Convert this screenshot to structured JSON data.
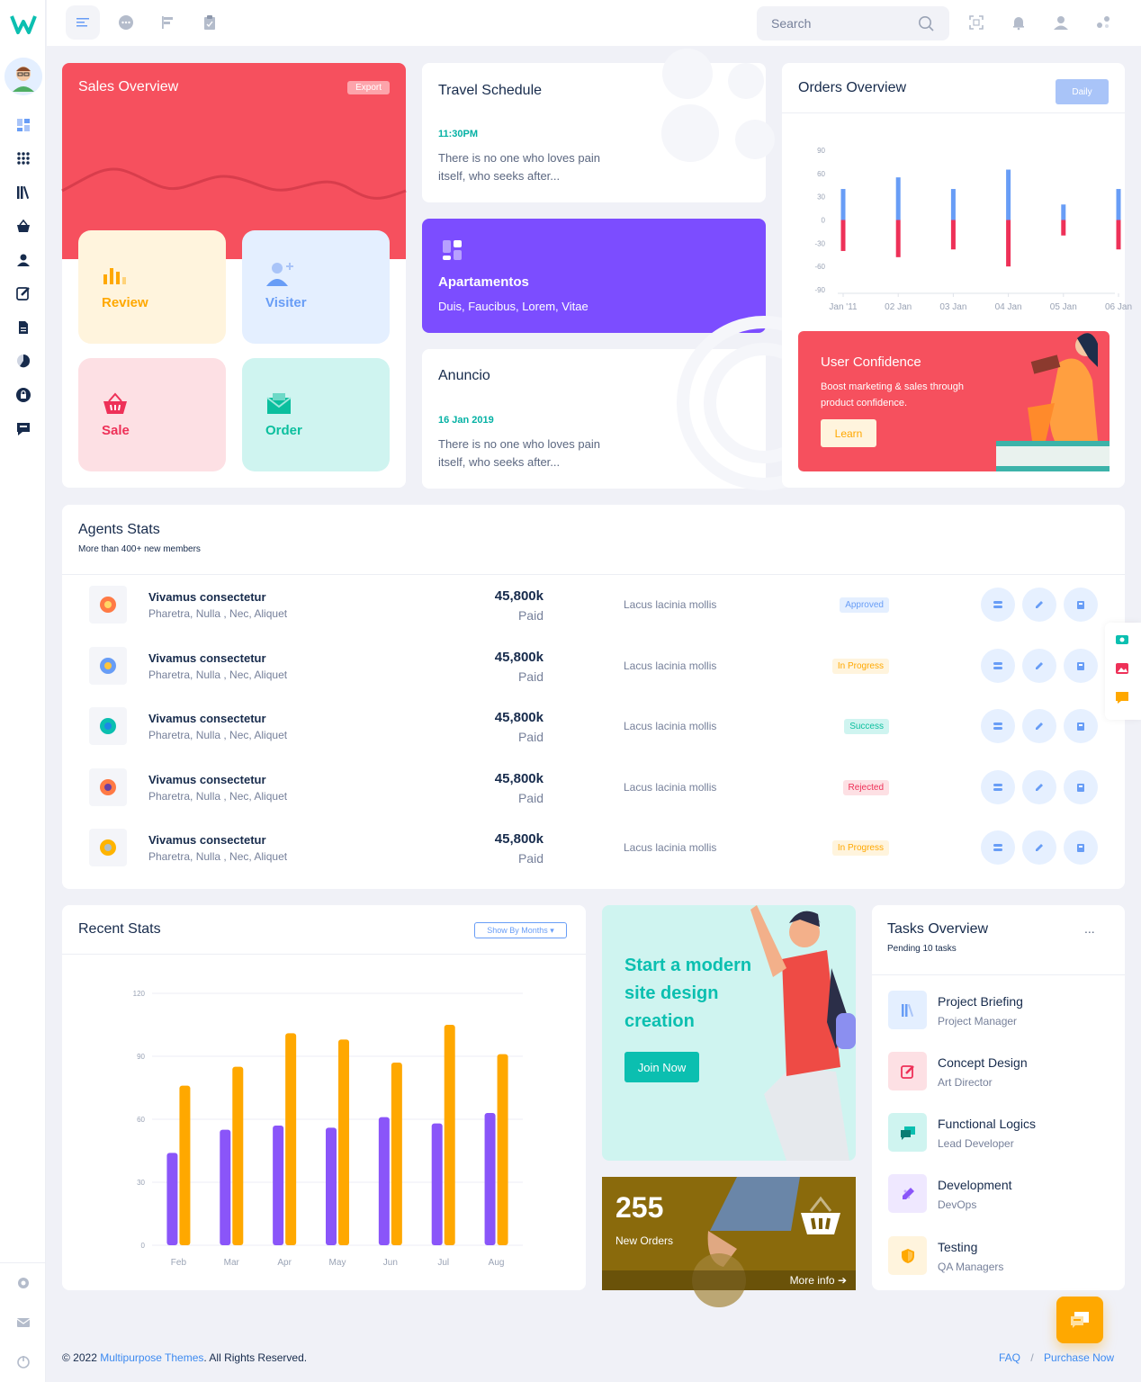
{
  "header": {
    "search_placeholder": "Search"
  },
  "sales": {
    "title": "Sales Overview",
    "export": "Export",
    "tiles": [
      {
        "label": "Review",
        "color": "#ffa800"
      },
      {
        "label": "Visiter",
        "color": "#689df6"
      },
      {
        "label": "Sale",
        "color": "#ee3158"
      },
      {
        "label": "Order",
        "color": "#0bbf9e"
      }
    ]
  },
  "travel": {
    "title": "Travel Schedule",
    "time": "11:30PM",
    "text": "There is no one who loves pain itself, who seeks after..."
  },
  "apartments": {
    "title": "Apartamentos",
    "subtitle": "Duis, Faucibus, Lorem, Vitae"
  },
  "anuncio": {
    "title": "Anuncio",
    "date": "16 Jan 2019",
    "text": "There is no one who loves pain itself, who seeks after..."
  },
  "orders": {
    "title": "Orders Overview",
    "daily": "Daily"
  },
  "confidence": {
    "title": "User Confidence",
    "text": "Boost marketing & sales through product confidence.",
    "button": "Learn"
  },
  "agents": {
    "title": "Agents Stats",
    "subtitle": "More than 400+ new members",
    "rows": [
      {
        "name": "Vivamus consectetur",
        "sub": "Pharetra, Nulla , Nec, Aliquet",
        "amount": "45,800k",
        "paid": "Paid",
        "desc": "Lacus lacinia mollis",
        "status": "Approved"
      },
      {
        "name": "Vivamus consectetur",
        "sub": "Pharetra, Nulla , Nec, Aliquet",
        "amount": "45,800k",
        "paid": "Paid",
        "desc": "Lacus lacinia mollis",
        "status": "In Progress"
      },
      {
        "name": "Vivamus consectetur",
        "sub": "Pharetra, Nulla , Nec, Aliquet",
        "amount": "45,800k",
        "paid": "Paid",
        "desc": "Lacus lacinia mollis",
        "status": "Success"
      },
      {
        "name": "Vivamus consectetur",
        "sub": "Pharetra, Nulla , Nec, Aliquet",
        "amount": "45,800k",
        "paid": "Paid",
        "desc": "Lacus lacinia mollis",
        "status": "Rejected"
      },
      {
        "name": "Vivamus consectetur",
        "sub": "Pharetra, Nulla , Nec, Aliquet",
        "amount": "45,800k",
        "paid": "Paid",
        "desc": "Lacus lacinia mollis",
        "status": "In Progress"
      }
    ]
  },
  "recent": {
    "title": "Recent Stats",
    "filter": "Show By Months"
  },
  "promo": {
    "title": "Start a modern site design creation",
    "button": "Join Now"
  },
  "neworders": {
    "count": "255",
    "label": "New Orders",
    "more": "More info"
  },
  "tasks": {
    "title": "Tasks Overview",
    "subtitle": "Pending 10 tasks",
    "more": "...",
    "items": [
      {
        "name": "Project Briefing",
        "role": "Project Manager"
      },
      {
        "name": "Concept Design",
        "role": "Art Director"
      },
      {
        "name": "Functional Logics",
        "role": "Lead Developer"
      },
      {
        "name": "Development",
        "role": "DevOps"
      },
      {
        "name": "Testing",
        "role": "QA Managers"
      }
    ]
  },
  "footer": {
    "copyright_prefix": "© 2022 ",
    "company": "Multipurpose Themes",
    "copyright_suffix": ". All Rights Reserved.",
    "faq": "FAQ",
    "sep": "/",
    "purchase": "Purchase Now"
  },
  "chart_data": [
    {
      "type": "bar",
      "categories": [
        "Jan '11",
        "02 Jan",
        "03 Jan",
        "04 Jan",
        "05 Jan",
        "06 Jan"
      ],
      "series": [
        {
          "name": "",
          "values": [
            40,
            55,
            40,
            65,
            20,
            40
          ],
          "color": "#689df6"
        },
        {
          "name": "",
          "values": [
            -40,
            -48,
            -38,
            -60,
            -20,
            -38
          ],
          "color": "#ee3158"
        }
      ],
      "ylim": [
        -90,
        90
      ],
      "yticks": [
        90,
        60,
        30,
        0,
        -30,
        -60,
        -90
      ],
      "stacked": true,
      "grid": false
    },
    {
      "type": "bar",
      "categories": [
        "Feb",
        "Mar",
        "Apr",
        "May",
        "Jun",
        "Jul",
        "Aug"
      ],
      "series": [
        {
          "name": "",
          "values": [
            44,
            55,
            57,
            56,
            61,
            58,
            63
          ],
          "color": "#8a55f9"
        },
        {
          "name": "",
          "values": [
            76,
            85,
            101,
            98,
            87,
            105,
            91
          ],
          "color": "#ffa800"
        }
      ],
      "ylim": [
        0,
        120
      ],
      "yticks": [
        120,
        90,
        60,
        30,
        0
      ],
      "grid": true
    }
  ]
}
